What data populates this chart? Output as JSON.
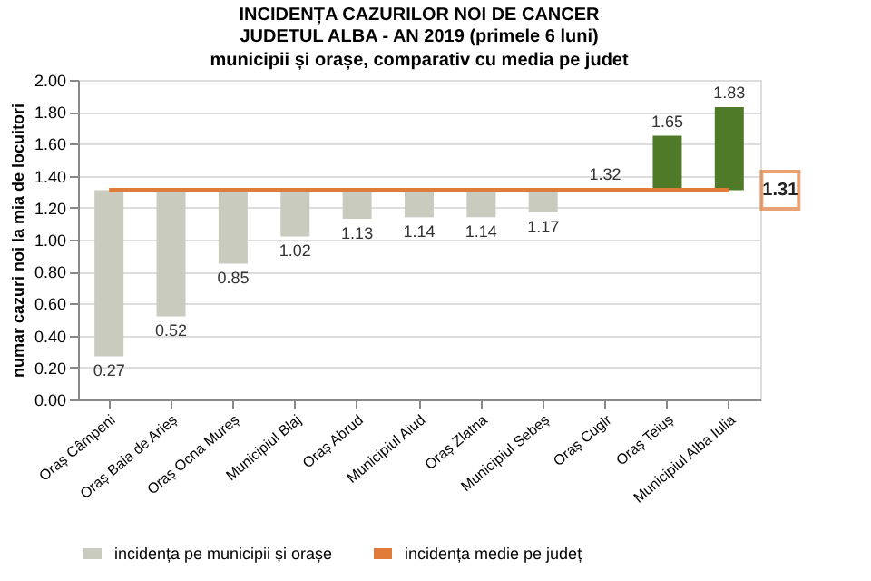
{
  "chart_data": {
    "type": "bar",
    "title": "INCIDENȚA CAZURILOR NOI DE CANCER\nJUDETUL ALBA - AN 2019 (primele 6 luni)",
    "subtitle": "municipii și orașe, comparativ cu media pe judet",
    "ylabel": "numar cazuri noi la mia de locuitori",
    "categories": [
      "Oraș Câmpeni",
      "Oraș Baia de Arieș",
      "Oraș Ocna Mureș",
      "Municipiul Blaj",
      "Oraș Abrud",
      "Municipiul Aiud",
      "Oraș Zlatna",
      "Municipiul Sebeș",
      "Oraș Cugir",
      "Oraș Teiuș",
      "Municipiul Alba Iulia"
    ],
    "series": [
      {
        "name": "incidența pe municipii și orașe",
        "color": "#c9cbbf",
        "colors": [
          "#c9cbbf",
          "#c9cbbf",
          "#c9cbbf",
          "#c9cbbf",
          "#c9cbbf",
          "#c9cbbf",
          "#c9cbbf",
          "#c9cbbf",
          "#b9c4a6",
          "#4f7a28",
          "#4f7a28"
        ],
        "base": [
          1.31,
          1.31,
          1.31,
          1.31,
          1.31,
          1.31,
          1.31,
          1.31,
          1.31,
          1.31,
          1.31
        ],
        "values": [
          -1.04,
          -0.79,
          -0.46,
          -0.29,
          -0.18,
          -0.17,
          -0.17,
          -0.14,
          0.01,
          0.34,
          0.52
        ],
        "value_labels": [
          "0.27",
          "0.52",
          "0.85",
          "1.02",
          "1.13",
          "1.14",
          "1.14",
          "1.17",
          "1.32",
          "1.65",
          "1.83"
        ]
      },
      {
        "name": "incidența medie pe județ",
        "type": "line",
        "color": "#e07b39",
        "values": [
          1.31,
          1.31,
          1.31,
          1.31,
          1.31,
          1.31,
          1.31,
          1.31,
          1.31,
          1.31,
          1.31
        ],
        "value_labels": [
          null,
          null,
          null,
          null,
          null,
          null,
          null,
          null,
          null,
          null,
          "1.31"
        ]
      }
    ],
    "ylim": [
      0,
      2
    ],
    "yticks": [
      {
        "value": 0,
        "label": "0.00"
      },
      {
        "value": 0.2,
        "label": "0.20"
      },
      {
        "value": 0.4,
        "label": "0.40"
      },
      {
        "value": 0.6,
        "label": "0.60"
      },
      {
        "value": 0.8,
        "label": "0.80"
      },
      {
        "value": 1,
        "label": "1.00"
      },
      {
        "value": 1.2,
        "label": "1.20"
      },
      {
        "value": 1.4,
        "label": "1.40"
      },
      {
        "value": 1.6,
        "label": "1.60"
      },
      {
        "value": 1.8,
        "label": "1.80"
      },
      {
        "value": 2,
        "label": "2.00"
      }
    ],
    "grid": "y",
    "legend": "bottom"
  }
}
